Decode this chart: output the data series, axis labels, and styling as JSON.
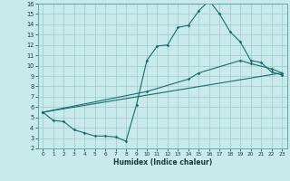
{
  "xlabel": "Humidex (Indice chaleur)",
  "xlim": [
    -0.5,
    23.5
  ],
  "ylim": [
    2,
    16
  ],
  "xticks": [
    0,
    1,
    2,
    3,
    4,
    5,
    6,
    7,
    8,
    9,
    10,
    11,
    12,
    13,
    14,
    15,
    16,
    17,
    18,
    19,
    20,
    21,
    22,
    23
  ],
  "yticks": [
    2,
    3,
    4,
    5,
    6,
    7,
    8,
    9,
    10,
    11,
    12,
    13,
    14,
    15,
    16
  ],
  "bg_color": "#c8eaea",
  "grid_color": "#a0c8c8",
  "line_color": "#1a6b6b",
  "line1_x": [
    0,
    1,
    2,
    3,
    4,
    5,
    6,
    7,
    8,
    9,
    10,
    11,
    12,
    13,
    14,
    15,
    16,
    17,
    18,
    19,
    20,
    21,
    22,
    23
  ],
  "line1_y": [
    5.5,
    4.7,
    4.6,
    3.8,
    3.5,
    3.2,
    3.2,
    3.1,
    2.7,
    6.2,
    10.5,
    11.9,
    12.0,
    13.7,
    13.9,
    15.3,
    16.3,
    15.0,
    13.3,
    12.3,
    10.5,
    10.3,
    9.4,
    9.1
  ],
  "line2_x": [
    0,
    10,
    14,
    15,
    19,
    20,
    22,
    23
  ],
  "line2_y": [
    5.5,
    7.5,
    8.7,
    9.3,
    10.5,
    10.2,
    9.7,
    9.3
  ],
  "line3_x": [
    0,
    23
  ],
  "line3_y": [
    5.5,
    9.3
  ]
}
